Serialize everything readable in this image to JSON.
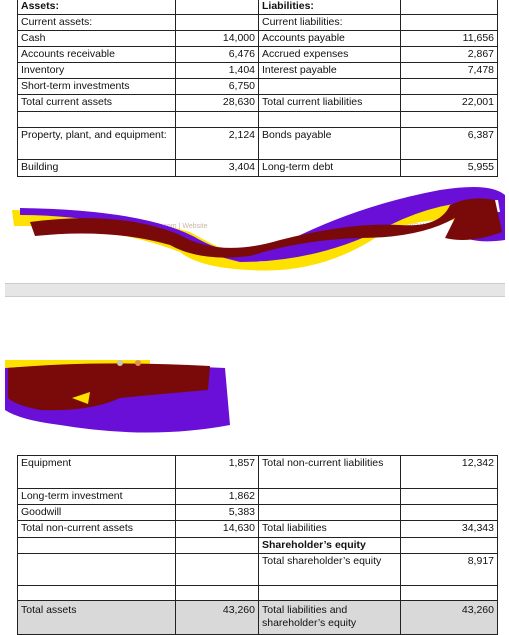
{
  "top_table": {
    "rows": [
      [
        "Assets:",
        null,
        "Liabilities:",
        null
      ],
      [
        "Current assets:",
        null,
        "Current liabilities:",
        null
      ],
      [
        "Cash",
        "14,000",
        "Accounts payable",
        "11,656"
      ],
      [
        "Accounts receivable",
        "6,476",
        "Accrued expenses",
        "2,867"
      ],
      [
        "Inventory",
        "1,404",
        "Interest payable",
        "7,478"
      ],
      [
        "Short-term investments",
        "6,750",
        null,
        null
      ],
      [
        "Total current assets",
        "28,630",
        "Total current liabilities",
        "22,001"
      ],
      [
        null,
        null,
        null,
        null
      ],
      [
        "Property, plant, and equipment:",
        "2,124",
        "Bonds payable",
        "6,387"
      ],
      [
        "Building",
        "3,404",
        "Long-term debt",
        "5,955"
      ]
    ]
  },
  "redaction_fragments": [
    "info@getsmarter.com | Website",
    "RTNERSHIP W"
  ],
  "bottom_table": {
    "rows": [
      [
        "Equipment",
        "1,857",
        "Total non-current liabilities",
        "12,342"
      ],
      [
        "Long-term investment",
        "1,862",
        null,
        null
      ],
      [
        "Goodwill",
        "5,383",
        null,
        null
      ],
      [
        "Total non-current assets",
        "14,630",
        "Total liabilities",
        "34,343"
      ],
      [
        null,
        null,
        "Shareholder’s equity",
        null
      ],
      [
        null,
        null,
        "Total shareholder’s equity",
        "8,917"
      ],
      [
        null,
        null,
        null,
        null
      ],
      [
        "Total assets",
        "43,260",
        "Total liabilities and shareholder’s equity",
        "43,260"
      ]
    ]
  }
}
